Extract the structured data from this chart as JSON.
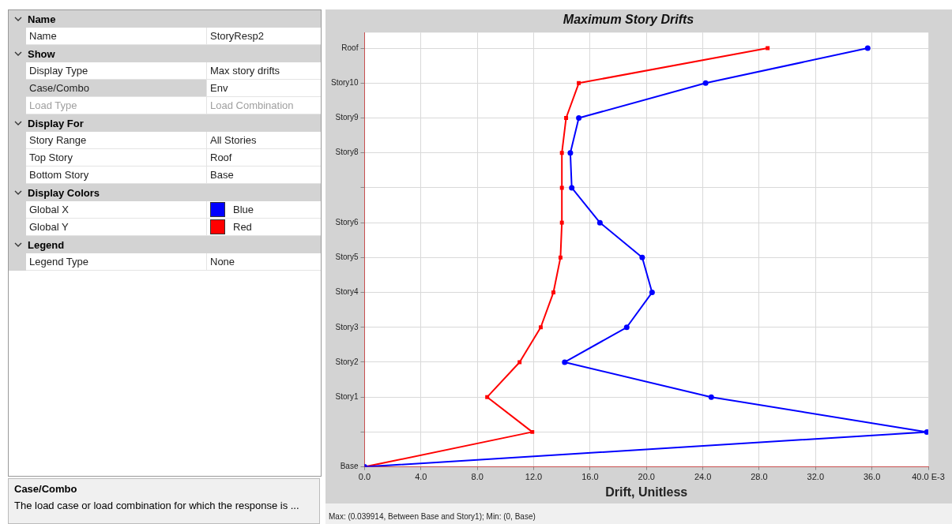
{
  "chart_data": [
    {
      "type": "other",
      "annotations": [
        "Name",
        "Name",
        "StoryResp2",
        "Show",
        "Display Type",
        "Max story drifts",
        "Case/Combo",
        "Env",
        "Load Type",
        "Load Combination",
        "Display For",
        "Story Range",
        "All Stories",
        "Top Story",
        "Roof",
        "Bottom Story",
        "Base",
        "Display Colors",
        "Global X",
        "Blue",
        "Global Y",
        "Red",
        "Legend",
        "Legend Type",
        "None",
        "Case/Combo",
        "The load case or load combination for which the response is ..."
      ]
    },
    {
      "type": "line",
      "orientation": "horizontal",
      "title": "Maximum Story Drifts",
      "xlabel": "Drift, Unitless",
      "xlim": [
        0,
        40
      ],
      "xticks": [
        {
          "value": 0,
          "label": "0.0"
        },
        {
          "value": 4,
          "label": "4.0"
        },
        {
          "value": 8,
          "label": "8.0"
        },
        {
          "value": 12,
          "label": "12.0"
        },
        {
          "value": 16,
          "label": "16.0"
        },
        {
          "value": 20,
          "label": "20.0"
        },
        {
          "value": 24,
          "label": "24.0"
        },
        {
          "value": 28,
          "label": "28.0"
        },
        {
          "value": 32,
          "label": "32.0"
        },
        {
          "value": 36,
          "label": "36.0"
        },
        {
          "value": 40,
          "label": "40.0 E-3"
        }
      ],
      "categories": [
        "Roof",
        "Story10",
        "Story9",
        "Story8",
        null,
        "Story6",
        "Story5",
        "Story4",
        "Story3",
        "Story2",
        "Story1",
        null,
        "Base"
      ],
      "grid": true,
      "line_style": "solid",
      "series": [
        {
          "color": "#0000ff",
          "marker": "circle",
          "values": [
            35.7,
            24.2,
            15.2,
            14.6,
            14.7,
            16.7,
            19.7,
            20.4,
            18.6,
            14.2,
            24.6,
            39.9,
            0
          ]
        },
        {
          "color": "#ff0000",
          "marker": "square",
          "values": [
            28.6,
            15.2,
            14.3,
            14.0,
            14.0,
            14.0,
            13.9,
            13.4,
            12.5,
            11.0,
            8.7,
            11.9,
            0
          ]
        }
      ],
      "annotations": [
        "Max: (0.039914, Between Base and Story1);  Min: (0, Base)"
      ]
    }
  ]
}
